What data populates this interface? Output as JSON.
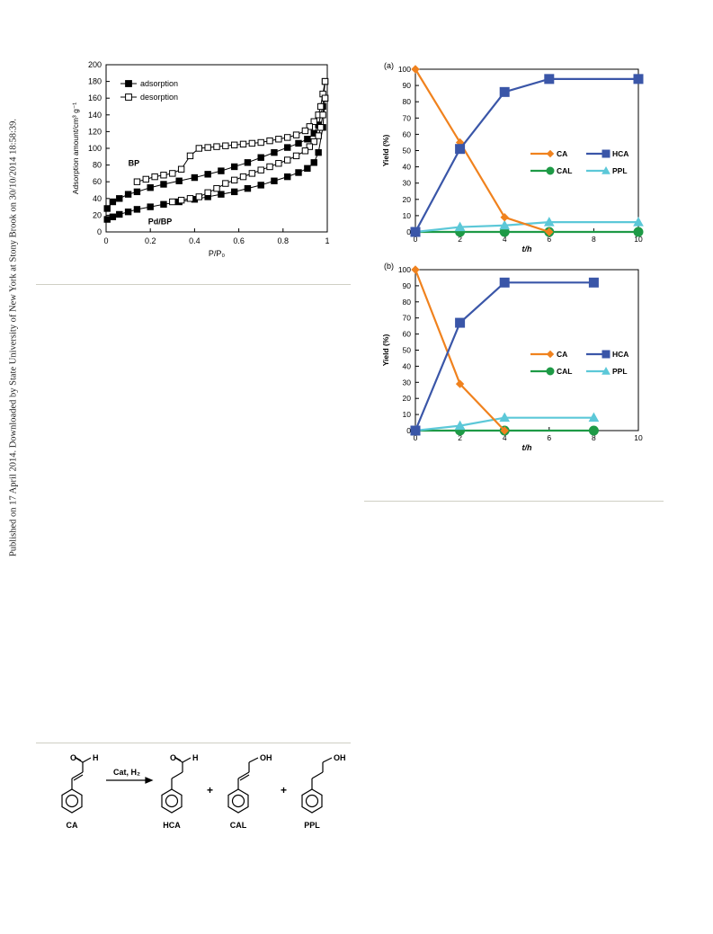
{
  "side_note": "Published on 17 April 2014. Downloaded by State University of New York at Stony Brook on 30/10/2014 18:58:39.",
  "chart_data": [
    {
      "id": "isotherm",
      "type": "line",
      "title": "",
      "xlabel": "P/P₀",
      "ylabel": "Adsorption amount/cm³ g⁻¹",
      "xlim": [
        0,
        1
      ],
      "ylim": [
        0,
        200
      ],
      "xticks": [
        "0",
        "0.2",
        "0.4",
        "0.6",
        "0.8",
        "1"
      ],
      "yticks": [
        "0",
        "20",
        "40",
        "60",
        "80",
        "100",
        "120",
        "140",
        "160",
        "180",
        "200"
      ],
      "legend": [
        "adsorption",
        "desorption"
      ],
      "legend_position": "top-left",
      "annotations": [
        "BP",
        "Pd/BP"
      ],
      "series": [
        {
          "name": "adsorption",
          "sample": "BP",
          "marker": "filled-square",
          "x": [
            0.005,
            0.03,
            0.06,
            0.1,
            0.14,
            0.2,
            0.26,
            0.33,
            0.4,
            0.46,
            0.52,
            0.58,
            0.64,
            0.7,
            0.76,
            0.82,
            0.87,
            0.91,
            0.94,
            0.96,
            0.98,
            0.99
          ],
          "y": [
            28,
            36,
            40,
            45,
            48,
            53,
            57,
            61,
            65,
            69,
            73,
            78,
            83,
            89,
            95,
            101,
            106,
            111,
            118,
            128,
            150,
            180
          ]
        },
        {
          "name": "desorption",
          "sample": "BP",
          "marker": "open-square",
          "x": [
            0.99,
            0.98,
            0.97,
            0.96,
            0.94,
            0.92,
            0.9,
            0.86,
            0.82,
            0.78,
            0.74,
            0.7,
            0.66,
            0.62,
            0.58,
            0.54,
            0.5,
            0.46,
            0.42,
            0.38,
            0.34,
            0.3,
            0.26,
            0.22,
            0.18,
            0.14
          ],
          "y": [
            180,
            165,
            150,
            140,
            132,
            126,
            121,
            116,
            113,
            111,
            109,
            107,
            106,
            105,
            104,
            103,
            102,
            101,
            100,
            91,
            75,
            70,
            68,
            66,
            63,
            60
          ]
        },
        {
          "name": "adsorption",
          "sample": "Pd/BP",
          "marker": "filled-square",
          "x": [
            0.005,
            0.03,
            0.06,
            0.1,
            0.14,
            0.2,
            0.26,
            0.33,
            0.4,
            0.46,
            0.52,
            0.58,
            0.64,
            0.7,
            0.76,
            0.82,
            0.87,
            0.91,
            0.94,
            0.96,
            0.98,
            0.99
          ],
          "y": [
            15,
            18,
            21,
            24,
            27,
            30,
            33,
            36,
            39,
            42,
            45,
            48,
            52,
            56,
            61,
            66,
            71,
            76,
            83,
            95,
            125,
            160
          ]
        },
        {
          "name": "desorption",
          "sample": "Pd/BP",
          "marker": "open-square",
          "x": [
            0.99,
            0.98,
            0.97,
            0.96,
            0.94,
            0.92,
            0.9,
            0.86,
            0.82,
            0.78,
            0.74,
            0.7,
            0.66,
            0.62,
            0.58,
            0.54,
            0.5,
            0.46,
            0.42,
            0.38,
            0.34,
            0.3
          ],
          "y": [
            160,
            140,
            125,
            115,
            108,
            102,
            97,
            91,
            86,
            82,
            78,
            74,
            70,
            66,
            62,
            58,
            52,
            47,
            42,
            40,
            38,
            36
          ]
        }
      ]
    },
    {
      "id": "yield-a",
      "type": "line",
      "panel_label": "(a)",
      "xlabel": "t/h",
      "ylabel": "Yield (%)",
      "xlim": [
        0,
        10
      ],
      "ylim": [
        0,
        100
      ],
      "xticks": [
        "0",
        "2",
        "4",
        "6",
        "8",
        "10"
      ],
      "yticks": [
        "0",
        "10",
        "20",
        "30",
        "40",
        "50",
        "60",
        "70",
        "80",
        "90",
        "100"
      ],
      "legend_position": "middle-right",
      "series": [
        {
          "name": "CA",
          "color": "#f0821e",
          "marker": "diamond",
          "x": [
            0,
            2,
            4,
            6
          ],
          "y": [
            100,
            55,
            9,
            0
          ]
        },
        {
          "name": "HCA",
          "color": "#3a56a8",
          "marker": "square",
          "x": [
            0,
            2,
            4,
            6,
            10
          ],
          "y": [
            0,
            51,
            86,
            94,
            94
          ]
        },
        {
          "name": "CAL",
          "color": "#1e9a46",
          "marker": "circle",
          "x": [
            0,
            2,
            4,
            6,
            10
          ],
          "y": [
            0,
            0,
            0,
            0,
            0
          ]
        },
        {
          "name": "PPL",
          "color": "#5cc8d8",
          "marker": "triangle",
          "x": [
            0,
            2,
            4,
            6,
            10
          ],
          "y": [
            0,
            3,
            4,
            6,
            6
          ]
        }
      ]
    },
    {
      "id": "yield-b",
      "type": "line",
      "panel_label": "(b)",
      "xlabel": "t/h",
      "ylabel": "Yield (%)",
      "xlim": [
        0,
        10
      ],
      "ylim": [
        0,
        100
      ],
      "xticks": [
        "0",
        "2",
        "4",
        "6",
        "8",
        "10"
      ],
      "yticks": [
        "0",
        "10",
        "20",
        "30",
        "40",
        "50",
        "60",
        "70",
        "80",
        "90",
        "100"
      ],
      "legend_position": "middle-right",
      "series": [
        {
          "name": "CA",
          "color": "#f0821e",
          "marker": "diamond",
          "x": [
            0,
            2,
            4
          ],
          "y": [
            100,
            29,
            0
          ]
        },
        {
          "name": "HCA",
          "color": "#3a56a8",
          "marker": "square",
          "x": [
            0,
            2,
            4,
            8
          ],
          "y": [
            0,
            67,
            92,
            92
          ]
        },
        {
          "name": "CAL",
          "color": "#1e9a46",
          "marker": "circle",
          "x": [
            0,
            2,
            4,
            8
          ],
          "y": [
            0,
            0,
            0,
            0
          ]
        },
        {
          "name": "PPL",
          "color": "#5cc8d8",
          "marker": "triangle",
          "x": [
            0,
            2,
            4,
            8
          ],
          "y": [
            0,
            3,
            8,
            8
          ]
        }
      ]
    }
  ],
  "scheme": {
    "reagent": "Cat, H₂",
    "plus": "+",
    "compounds": [
      {
        "id": "CA",
        "label": "CA",
        "atoms": [
          "O",
          "H"
        ]
      },
      {
        "id": "HCA",
        "label": "HCA",
        "atoms": [
          "O",
          "H"
        ]
      },
      {
        "id": "CAL",
        "label": "CAL",
        "atoms": [
          "OH"
        ]
      },
      {
        "id": "PPL",
        "label": "PPL",
        "atoms": [
          "OH"
        ]
      }
    ]
  }
}
